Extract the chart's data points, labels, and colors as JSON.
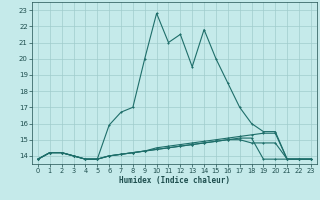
{
  "xlabel": "Humidex (Indice chaleur)",
  "xlim": [
    -0.5,
    23.5
  ],
  "ylim": [
    13.5,
    23.5
  ],
  "yticks": [
    14,
    15,
    16,
    17,
    18,
    19,
    20,
    21,
    22,
    23
  ],
  "xticks": [
    0,
    1,
    2,
    3,
    4,
    5,
    6,
    7,
    8,
    9,
    10,
    11,
    12,
    13,
    14,
    15,
    16,
    17,
    18,
    19,
    20,
    21,
    22,
    23
  ],
  "bg_color": "#c5eaea",
  "grid_color": "#a0cccc",
  "line_color": "#1e6e6a",
  "line1_x": [
    0,
    1,
    2,
    3,
    4,
    5,
    6,
    7,
    8,
    9,
    10,
    11,
    12,
    13,
    14,
    15,
    16,
    17,
    18,
    19,
    20,
    21,
    22,
    23
  ],
  "line1_y": [
    13.8,
    14.2,
    14.2,
    14.0,
    13.8,
    13.8,
    15.9,
    16.7,
    17.0,
    20.0,
    22.8,
    21.0,
    21.5,
    19.5,
    21.8,
    20.0,
    18.5,
    17.0,
    16.0,
    15.5,
    15.5,
    13.8,
    13.8,
    13.8
  ],
  "line2_x": [
    0,
    1,
    2,
    3,
    4,
    5,
    6,
    7,
    8,
    9,
    10,
    11,
    12,
    13,
    14,
    15,
    16,
    17,
    18,
    19,
    20,
    21,
    22,
    23
  ],
  "line2_y": [
    13.8,
    14.2,
    14.2,
    14.0,
    13.8,
    13.8,
    14.0,
    14.1,
    14.2,
    14.3,
    14.5,
    14.6,
    14.7,
    14.8,
    14.9,
    15.0,
    15.1,
    15.2,
    15.3,
    15.4,
    15.4,
    13.8,
    13.8,
    13.8
  ],
  "line3_x": [
    0,
    1,
    2,
    3,
    4,
    5,
    6,
    7,
    8,
    9,
    10,
    11,
    12,
    13,
    14,
    15,
    16,
    17,
    18,
    19,
    20,
    21,
    22,
    23
  ],
  "line3_y": [
    13.8,
    14.2,
    14.2,
    14.0,
    13.8,
    13.8,
    14.0,
    14.1,
    14.2,
    14.3,
    14.4,
    14.5,
    14.6,
    14.7,
    14.8,
    14.9,
    15.0,
    15.1,
    15.1,
    13.8,
    13.8,
    13.8,
    13.8,
    13.8
  ],
  "line4_x": [
    0,
    1,
    2,
    3,
    4,
    5,
    6,
    7,
    8,
    9,
    10,
    11,
    12,
    13,
    14,
    15,
    16,
    17,
    18,
    19,
    20,
    21,
    22,
    23
  ],
  "line4_y": [
    13.8,
    14.2,
    14.2,
    14.0,
    13.8,
    13.8,
    14.0,
    14.1,
    14.2,
    14.3,
    14.4,
    14.5,
    14.6,
    14.7,
    14.8,
    14.9,
    15.0,
    15.0,
    14.8,
    14.8,
    14.8,
    13.8,
    13.8,
    13.8
  ]
}
